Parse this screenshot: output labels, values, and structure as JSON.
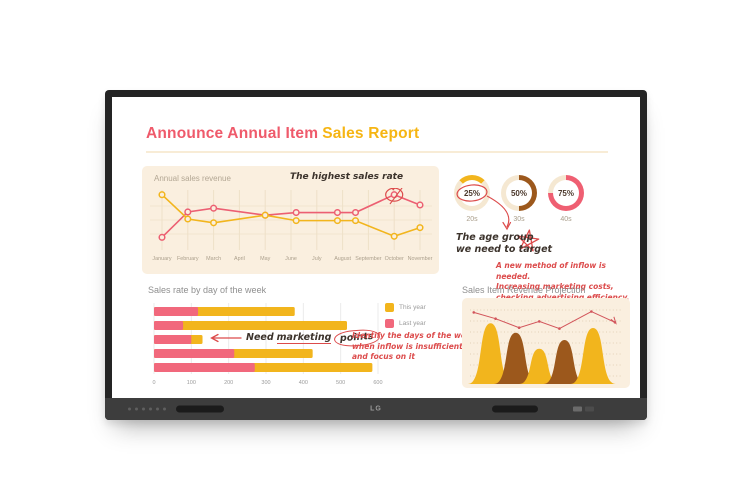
{
  "device": {
    "brand": "LG"
  },
  "title": {
    "part1": "Announce Annual Item",
    "part2": "Sales Report"
  },
  "colors": {
    "title_pink": "#ef5a6b",
    "title_yellow": "#f6b513",
    "pink": "#ec5f72",
    "yellow": "#f2b51d",
    "brown": "#9c581c",
    "panel_cream": "#faefdf",
    "donut_track": "#f5e8d2",
    "annot_red": "#dc4b4b",
    "ink": "#3c332c"
  },
  "annotations": {
    "highest": "The highest sales rate",
    "age_group": [
      "The age group",
      "we need to target"
    ],
    "inflow": [
      "A new method of inflow is needed.",
      "Increasing marketing costs,",
      "checking advertising efficiency."
    ],
    "marketing": {
      "pre": "Need",
      "underline": "marketing",
      "circled": "points"
    },
    "identify": [
      "Identify the days of the week",
      "when inflow is insufficient",
      "and focus on it"
    ]
  },
  "chart_data": [
    {
      "type": "line",
      "title": "Annual sales revenue",
      "x": [
        "January",
        "February",
        "March",
        "April",
        "May",
        "June",
        "July",
        "August",
        "September",
        "October",
        "November"
      ],
      "ylim": [
        0,
        100
      ],
      "grid": true,
      "series": [
        {
          "name": "pink",
          "color": "#ec5f72",
          "points": [
            [
              0,
              16
            ],
            [
              1,
              63
            ],
            [
              2,
              70
            ],
            [
              4,
              57
            ],
            [
              5.2,
              62
            ],
            [
              6.8,
              62
            ],
            [
              7.5,
              62
            ],
            [
              9,
              95
            ],
            [
              10,
              76
            ]
          ]
        },
        {
          "name": "yellow",
          "color": "#f2b51d",
          "points": [
            [
              0,
              95
            ],
            [
              1,
              50
            ],
            [
              2,
              43
            ],
            [
              4,
              57
            ],
            [
              5.2,
              47
            ],
            [
              6.8,
              47
            ],
            [
              7.5,
              47
            ],
            [
              9,
              18
            ],
            [
              10,
              34
            ]
          ]
        }
      ],
      "highlight": {
        "series": "pink",
        "x_index": 9,
        "value": 95,
        "note": "The highest sales rate"
      }
    },
    {
      "type": "donut",
      "items": [
        {
          "label": "20s",
          "value": 25,
          "color": "#f2b51d",
          "start_deg": -45,
          "circled": true
        },
        {
          "label": "30s",
          "value": 50,
          "color": "#9c581c",
          "start_deg": 0,
          "circled": false
        },
        {
          "label": "40s",
          "value": 75,
          "color": "#ef5f72",
          "start_deg": 0,
          "circled": false
        }
      ]
    },
    {
      "type": "bar",
      "title": "Sales rate by day of the week",
      "orientation": "horizontal",
      "stacked": true,
      "xticks": [
        0,
        100,
        200,
        300,
        400,
        500,
        600
      ],
      "xlim": [
        0,
        620
      ],
      "legend": [
        {
          "label": "This year",
          "color": "#f2b51d"
        },
        {
          "label": "Last year",
          "color": "#f1687c"
        }
      ],
      "series": [
        {
          "name": "Last year",
          "color": "#f1687c",
          "values": [
            118,
            78,
            100,
            215,
            270
          ]
        },
        {
          "name": "This year",
          "color": "#f2b51d",
          "values": [
            259,
            439,
            30,
            210,
            315
          ]
        }
      ],
      "totals": [
        377,
        517,
        130,
        425,
        585
      ]
    },
    {
      "type": "area",
      "title": "Sales Item Revenue Projection",
      "hills": [
        {
          "cx": 17,
          "w": 27,
          "h": 76,
          "color": "#f2b51d"
        },
        {
          "cx": 32,
          "w": 26,
          "h": 64,
          "color": "#9c581c"
        },
        {
          "cx": 46,
          "w": 24,
          "h": 44,
          "color": "#f2b51d"
        },
        {
          "cx": 61,
          "w": 25,
          "h": 55,
          "color": "#9c581c"
        },
        {
          "cx": 78,
          "w": 27,
          "h": 70,
          "color": "#f2b51d"
        }
      ],
      "line": {
        "color": "#d2555b",
        "points": [
          [
            7,
            16
          ],
          [
            20,
            23
          ],
          [
            34,
            33
          ],
          [
            46,
            26
          ],
          [
            58,
            34
          ],
          [
            77,
            15
          ],
          [
            91,
            27
          ]
        ]
      },
      "grid": "dotted"
    }
  ]
}
